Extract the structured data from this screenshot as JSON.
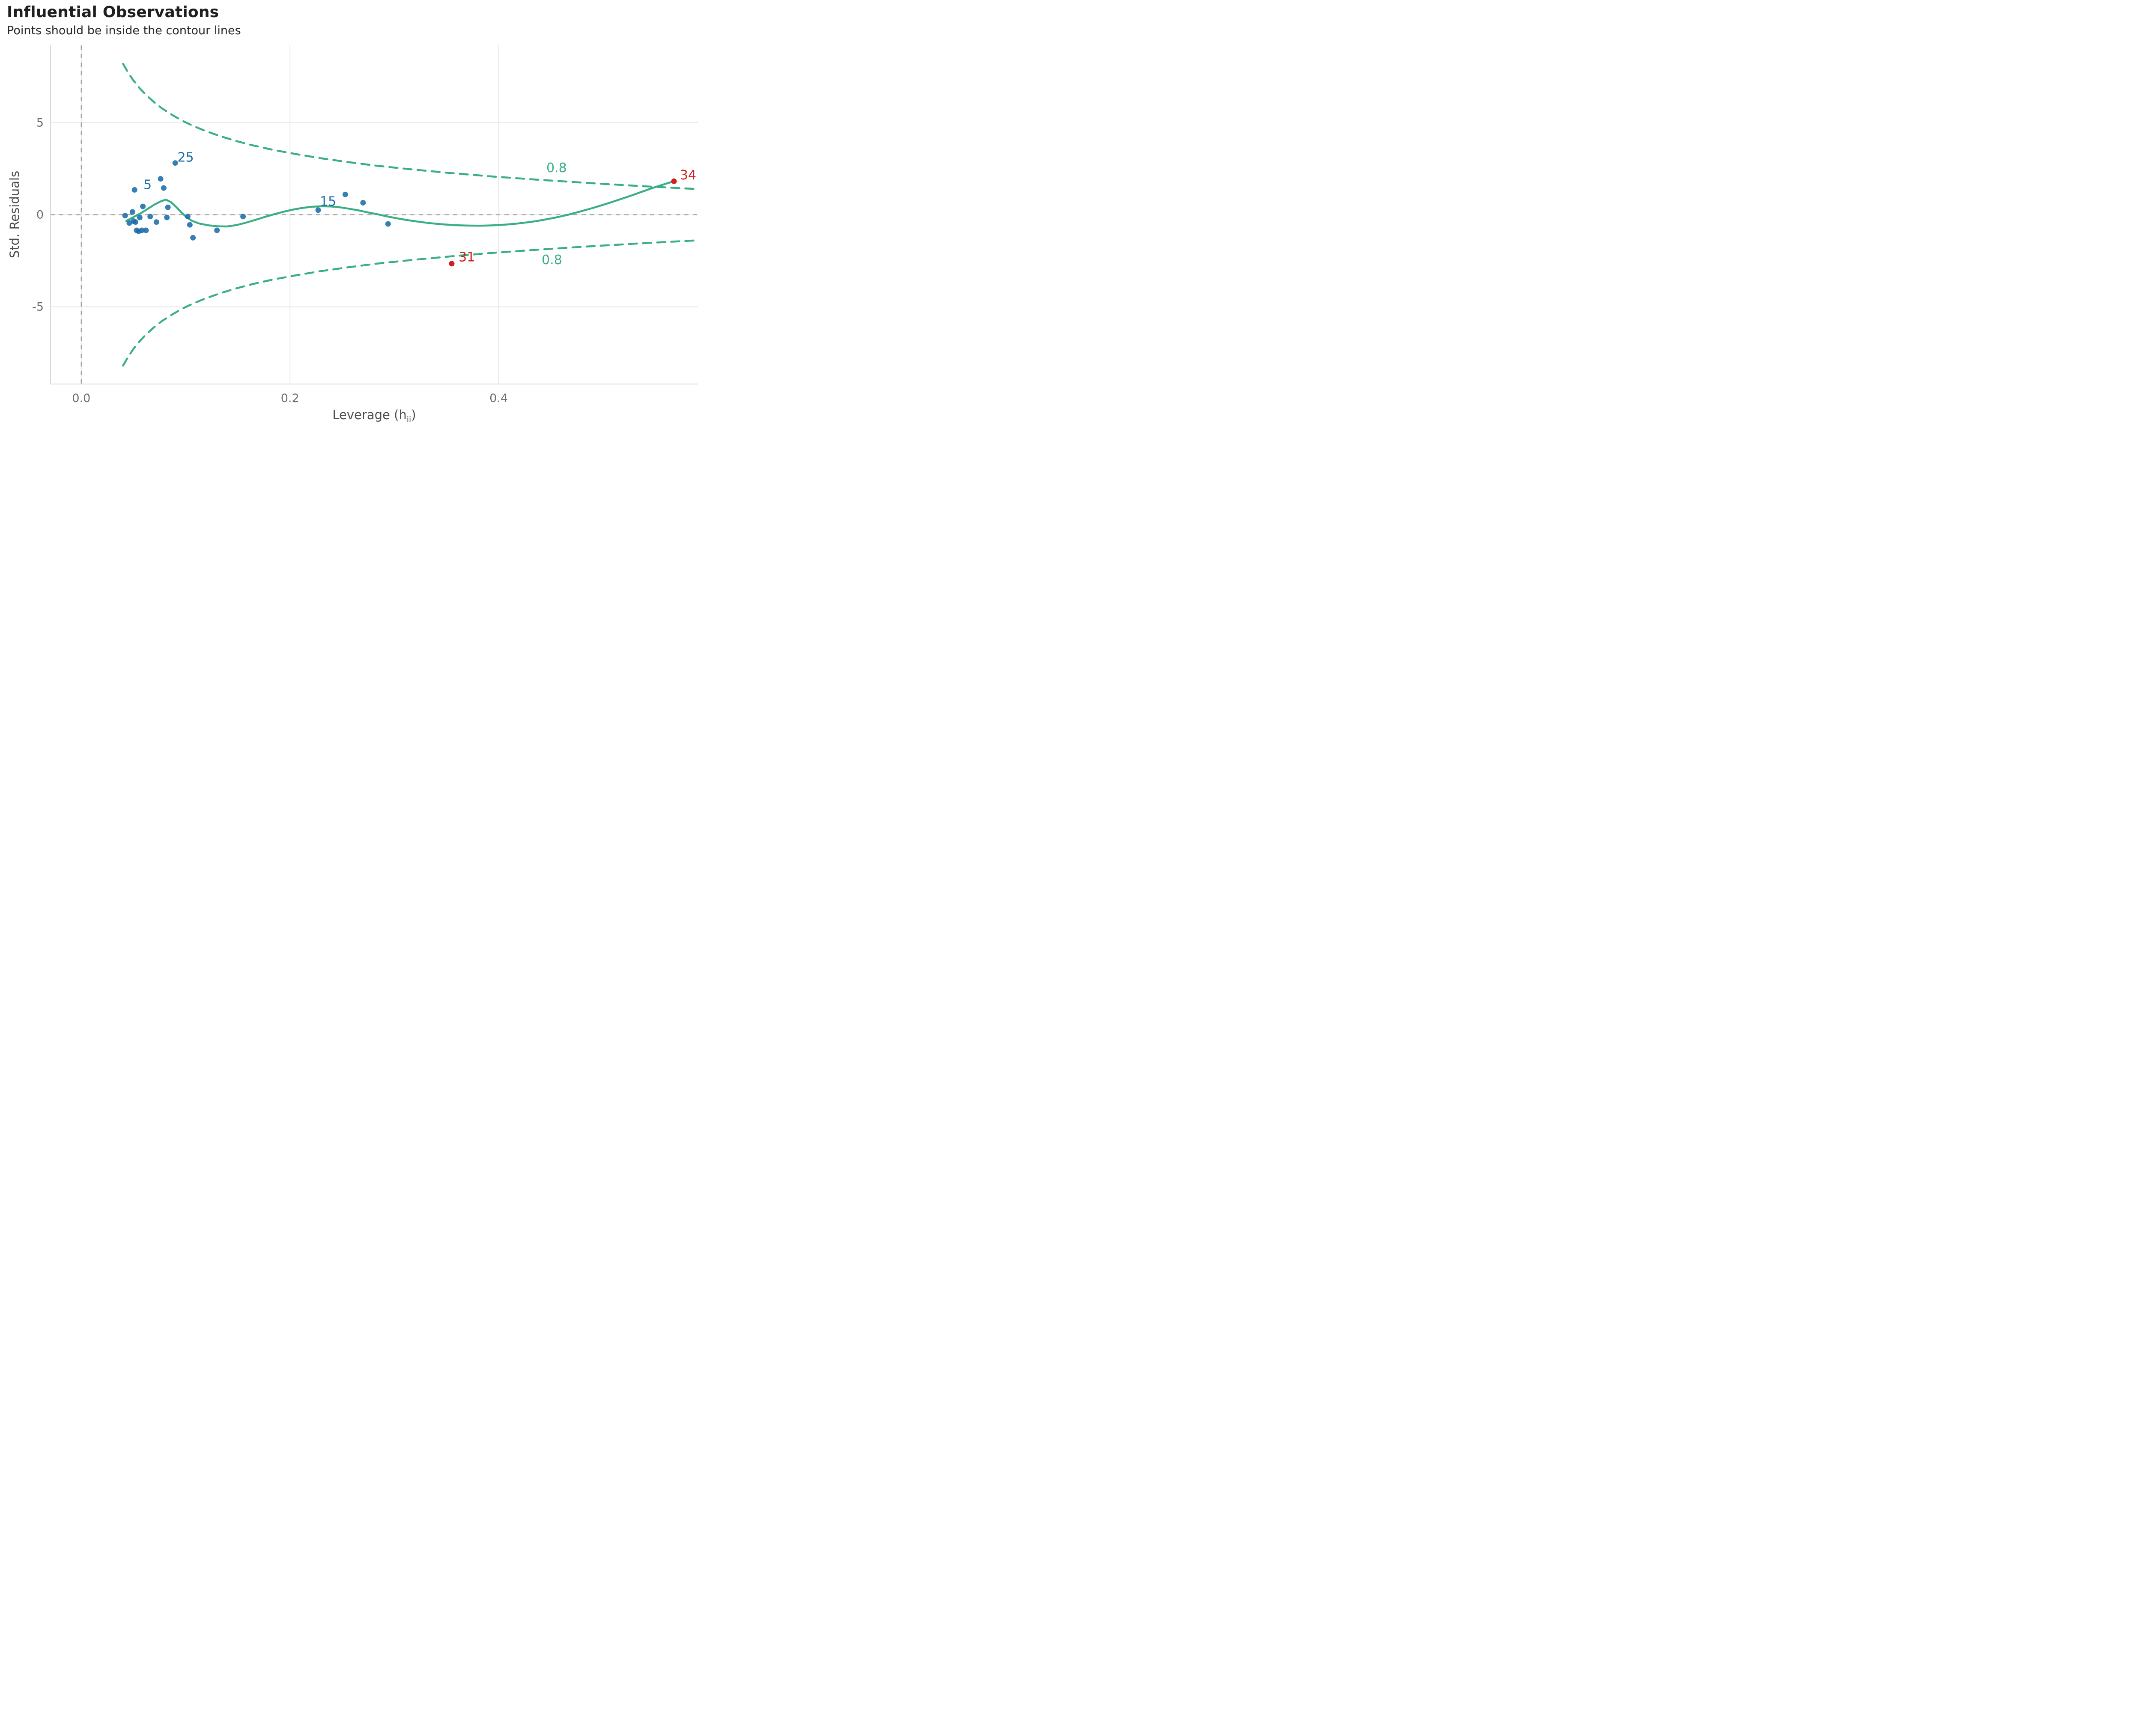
{
  "header": {
    "title": "Influential Observations",
    "subtitle": "Points should be inside the contour lines"
  },
  "chart_data": {
    "type": "scatter",
    "title": "Influential Observations",
    "subtitle": "Points should be inside the contour lines",
    "xlabel": {
      "text": "Leverage (h",
      "subscript": "ii",
      "suffix": ")"
    },
    "ylabel": "Std. Residuals",
    "xlim": [
      -0.0295,
      0.591
    ],
    "ylim": [
      -9.2,
      9.2
    ],
    "x_ticks": {
      "values": [
        0.0,
        0.2,
        0.4
      ],
      "labels": [
        "0.0",
        "0.2",
        "0.4"
      ]
    },
    "y_ticks": {
      "values": [
        -5,
        0,
        5
      ],
      "labels": [
        "-5",
        "0",
        "5"
      ]
    },
    "grid": true,
    "legend": "none",
    "reference_lines": {
      "vline_x": 0,
      "hline_y": 0,
      "style": "dashed",
      "color": "#a3a3a3"
    },
    "colors": {
      "ok_point": "#1b6ca8",
      "outlier_point": "#cd201f",
      "smooth": "#3aaf85",
      "contour": "#3aaf85",
      "grid": "#e8e8e8",
      "axis_line": "#d9d9d9",
      "tick_text": "#6e6e6e"
    },
    "points_ok": [
      [
        0.042,
        -0.05
      ],
      [
        0.046,
        -0.45
      ],
      [
        0.049,
        0.15
      ],
      [
        0.051,
        1.35
      ],
      [
        0.05,
        -0.35
      ],
      [
        0.052,
        -0.4
      ],
      [
        0.053,
        -0.85
      ],
      [
        0.055,
        -0.9
      ],
      [
        0.056,
        -0.15
      ],
      [
        0.058,
        -0.85
      ],
      [
        0.059,
        0.45
      ],
      [
        0.062,
        -0.85
      ],
      [
        0.066,
        -0.1
      ],
      [
        0.072,
        -0.4
      ],
      [
        0.076,
        1.95
      ],
      [
        0.079,
        1.45
      ],
      [
        0.082,
        -0.15
      ],
      [
        0.083,
        0.4
      ],
      [
        0.09,
        2.81
      ],
      [
        0.102,
        -0.1
      ],
      [
        0.104,
        -0.55
      ],
      [
        0.107,
        -1.25
      ],
      [
        0.13,
        -0.85
      ],
      [
        0.155,
        -0.1
      ],
      [
        0.227,
        0.25
      ],
      [
        0.253,
        1.1
      ],
      [
        0.27,
        0.65
      ],
      [
        0.294,
        -0.5
      ]
    ],
    "points_outlier": [
      [
        0.355,
        -2.66
      ],
      [
        0.568,
        1.82
      ]
    ],
    "point_labels": [
      {
        "text": "25",
        "x": 0.1,
        "y": 3.12,
        "color": "ok"
      },
      {
        "text": "5",
        "x": 0.0635,
        "y": 1.63,
        "color": "ok"
      },
      {
        "text": "15",
        "x": 0.2365,
        "y": 0.72,
        "color": "ok"
      },
      {
        "text": "31",
        "x": 0.3695,
        "y": -2.3,
        "color": "outlier"
      },
      {
        "text": "34",
        "x": 0.5815,
        "y": 2.15,
        "color": "outlier"
      }
    ],
    "smooth_line": [
      [
        0.043,
        -0.34
      ],
      [
        0.05,
        -0.13
      ],
      [
        0.057,
        0.08
      ],
      [
        0.064,
        0.33
      ],
      [
        0.07,
        0.55
      ],
      [
        0.076,
        0.72
      ],
      [
        0.081,
        0.82
      ],
      [
        0.086,
        0.68
      ],
      [
        0.091,
        0.42
      ],
      [
        0.096,
        0.12
      ],
      [
        0.101,
        -0.14
      ],
      [
        0.106,
        -0.33
      ],
      [
        0.113,
        -0.48
      ],
      [
        0.122,
        -0.58
      ],
      [
        0.131,
        -0.63
      ],
      [
        0.14,
        -0.64
      ],
      [
        0.149,
        -0.56
      ],
      [
        0.158,
        -0.43
      ],
      [
        0.167,
        -0.28
      ],
      [
        0.176,
        -0.12
      ],
      [
        0.185,
        0.03
      ],
      [
        0.194,
        0.16
      ],
      [
        0.203,
        0.28
      ],
      [
        0.212,
        0.37
      ],
      [
        0.221,
        0.43
      ],
      [
        0.23,
        0.46
      ],
      [
        0.239,
        0.45
      ],
      [
        0.248,
        0.4
      ],
      [
        0.257,
        0.32
      ],
      [
        0.266,
        0.23
      ],
      [
        0.275,
        0.12
      ],
      [
        0.284,
        0.02
      ],
      [
        0.293,
        -0.09
      ],
      [
        0.302,
        -0.19
      ],
      [
        0.312,
        -0.29
      ],
      [
        0.323,
        -0.38
      ],
      [
        0.334,
        -0.46
      ],
      [
        0.346,
        -0.52
      ],
      [
        0.358,
        -0.57
      ],
      [
        0.37,
        -0.59
      ],
      [
        0.382,
        -0.6
      ],
      [
        0.394,
        -0.58
      ],
      [
        0.406,
        -0.54
      ],
      [
        0.418,
        -0.48
      ],
      [
        0.43,
        -0.4
      ],
      [
        0.442,
        -0.29
      ],
      [
        0.454,
        -0.16
      ],
      [
        0.466,
        -0.01
      ],
      [
        0.478,
        0.17
      ],
      [
        0.49,
        0.36
      ],
      [
        0.502,
        0.57
      ],
      [
        0.514,
        0.79
      ],
      [
        0.526,
        1.02
      ],
      [
        0.538,
        1.26
      ],
      [
        0.55,
        1.5
      ],
      [
        0.56,
        1.68
      ],
      [
        0.568,
        1.82
      ]
    ],
    "contours": {
      "level_label": "0.8",
      "upper": [
        [
          0.04,
          8.2
        ],
        [
          0.045,
          7.71
        ],
        [
          0.05,
          7.29
        ],
        [
          0.056,
          6.87
        ],
        [
          0.062,
          6.51
        ],
        [
          0.069,
          6.15
        ],
        [
          0.077,
          5.79
        ],
        [
          0.086,
          5.46
        ],
        [
          0.096,
          5.13
        ],
        [
          0.107,
          4.83
        ],
        [
          0.119,
          4.55
        ],
        [
          0.133,
          4.27
        ],
        [
          0.148,
          4.01
        ],
        [
          0.165,
          3.76
        ],
        [
          0.184,
          3.52
        ],
        [
          0.205,
          3.3
        ],
        [
          0.228,
          3.08
        ],
        [
          0.254,
          2.87
        ],
        [
          0.283,
          2.66
        ],
        [
          0.315,
          2.47
        ],
        [
          0.351,
          2.28
        ],
        [
          0.391,
          2.09
        ],
        [
          0.435,
          1.91
        ],
        [
          0.484,
          1.73
        ],
        [
          0.538,
          1.55
        ],
        [
          0.591,
          1.39
        ]
      ],
      "lower": [
        [
          0.04,
          -8.2
        ],
        [
          0.045,
          -7.71
        ],
        [
          0.05,
          -7.29
        ],
        [
          0.056,
          -6.87
        ],
        [
          0.062,
          -6.51
        ],
        [
          0.069,
          -6.15
        ],
        [
          0.077,
          -5.79
        ],
        [
          0.086,
          -5.46
        ],
        [
          0.096,
          -5.13
        ],
        [
          0.107,
          -4.83
        ],
        [
          0.119,
          -4.55
        ],
        [
          0.133,
          -4.27
        ],
        [
          0.148,
          -4.01
        ],
        [
          0.165,
          -3.76
        ],
        [
          0.184,
          -3.52
        ],
        [
          0.205,
          -3.3
        ],
        [
          0.228,
          -3.08
        ],
        [
          0.254,
          -2.87
        ],
        [
          0.283,
          -2.66
        ],
        [
          0.315,
          -2.47
        ],
        [
          0.351,
          -2.28
        ],
        [
          0.391,
          -2.09
        ],
        [
          0.435,
          -1.91
        ],
        [
          0.484,
          -1.73
        ],
        [
          0.538,
          -1.55
        ],
        [
          0.591,
          -1.39
        ]
      ],
      "labels": [
        {
          "text": "0.8",
          "x": 0.4555,
          "y": 2.55
        },
        {
          "text": "0.8",
          "x": 0.451,
          "y": -2.45
        }
      ]
    }
  }
}
